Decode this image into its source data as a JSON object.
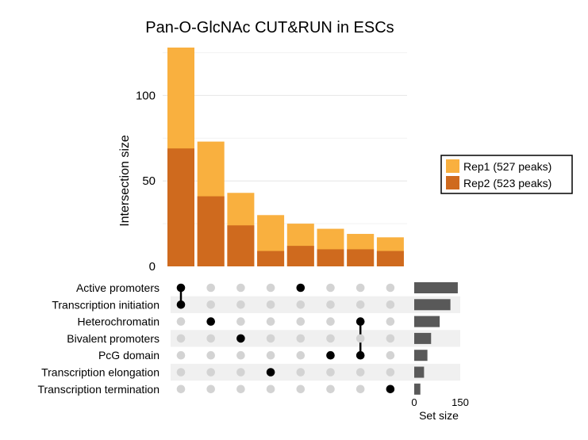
{
  "chart_data": {
    "type": "upset",
    "title": "Pan-O-GlcNAc CUT&RUN in ESCs",
    "ylabel": "Intersection size",
    "yticks": [
      0,
      50,
      100
    ],
    "ylim": [
      0,
      128
    ],
    "series": [
      {
        "name": "Rep1 (527 peaks)",
        "color": "#F9B03F",
        "values": [
          128,
          73,
          43,
          30,
          25,
          22,
          19,
          17
        ]
      },
      {
        "name": "Rep2 (523 peaks)",
        "color": "#CF6A1E",
        "values": [
          69,
          41,
          24,
          9,
          12,
          10,
          10,
          9
        ]
      }
    ],
    "sets": [
      "Active promoters",
      "Transcription initiation",
      "Heterochromatin",
      "Bivalent promoters",
      "PcG domain",
      "Transcription elongation",
      "Transcription termination"
    ],
    "intersections": [
      [
        0,
        1
      ],
      [
        2
      ],
      [
        3
      ],
      [
        5
      ],
      [
        0
      ],
      [
        4
      ],
      [
        2,
        4
      ],
      [
        6
      ]
    ],
    "set_sizes": [
      142,
      118,
      83,
      55,
      43,
      32,
      20
    ],
    "set_size_label": "Set size",
    "set_size_ticks": [
      0,
      150
    ],
    "set_size_max": 150,
    "colors": {
      "dot_active": "#000000",
      "dot_inactive": "#D3D3D3",
      "stripe": "#F0F0F0",
      "set_bar": "#595959",
      "gridline": "#E6E6E6"
    }
  }
}
